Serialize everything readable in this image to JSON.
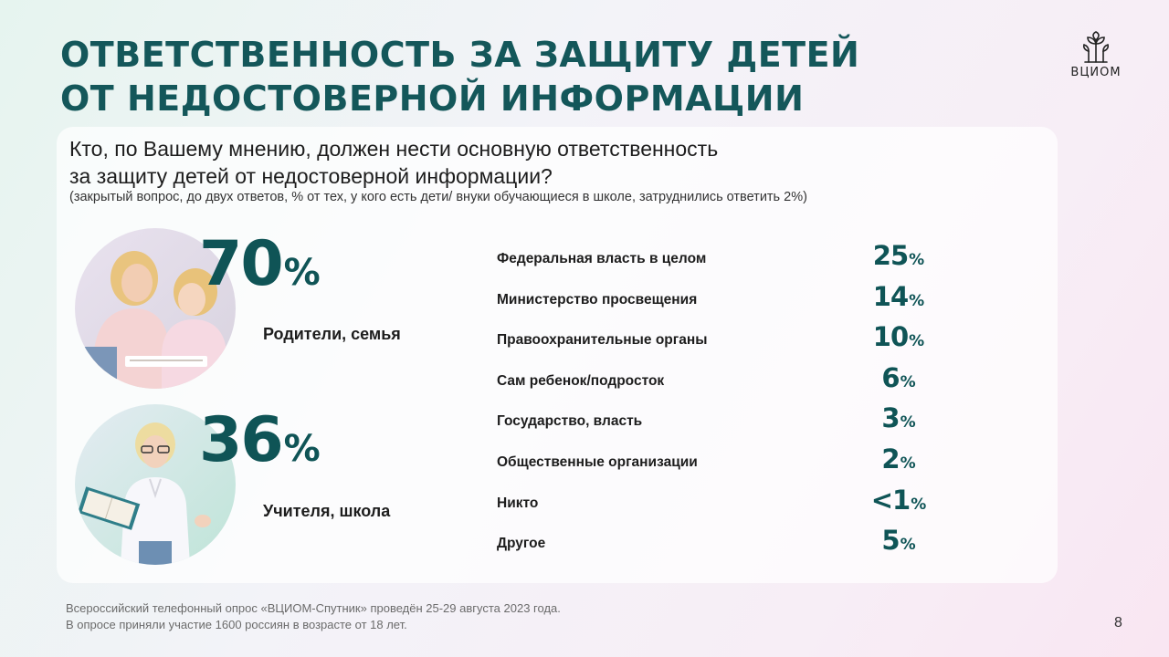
{
  "title": {
    "line1": "ОТВЕТСТВЕННОСТЬ ЗА ЗАЩИТУ ДЕТЕЙ",
    "line2": "ОТ НЕДОСТОВЕРНОЙ ИНФОРМАЦИИ"
  },
  "logo": {
    "text": "ВЦИОМ"
  },
  "question": {
    "line1": "Кто, по Вашему мнению, должен нести основную ответственность",
    "line2": "за защиту детей от недостоверной информации?",
    "note": "(закрытый вопрос, до двух ответов, % от тех, у кого есть дети/ внуки обучающиеся в школе, затруднились ответить 2%)"
  },
  "highlights": [
    {
      "value": "70",
      "unit": "%",
      "label": "Родители, семья",
      "icon": "mother-daughter-photo"
    },
    {
      "value": "36",
      "unit": "%",
      "label": "Учителя, школа",
      "icon": "teacher-photo"
    }
  ],
  "rows": [
    {
      "label": "Федеральная власть в целом",
      "value": "25",
      "unit": "%"
    },
    {
      "label": "Министерство просвещения",
      "value": "14",
      "unit": "%"
    },
    {
      "label": "Правоохранительные органы",
      "value": "10",
      "unit": "%"
    },
    {
      "label": "Сам ребенок/подросток",
      "value": "6",
      "unit": "%"
    },
    {
      "label": "Государство, власть",
      "value": "3",
      "unit": "%"
    },
    {
      "label": "Общественные организации",
      "value": "2",
      "unit": "%"
    },
    {
      "label": "Никто",
      "value": "<1",
      "unit": "%"
    },
    {
      "label": "Другое",
      "value": "5",
      "unit": "%"
    }
  ],
  "footer": {
    "line1": "Всероссийский телефонный опрос «ВЦИОМ-Спутник» проведён 25-29 августа 2023 года.",
    "line2": "В опросе приняли участие 1600 россиян в возрасте от 18 лет."
  },
  "page_number": "8",
  "colors": {
    "accent": "#0f5456",
    "title": "#14575a"
  }
}
